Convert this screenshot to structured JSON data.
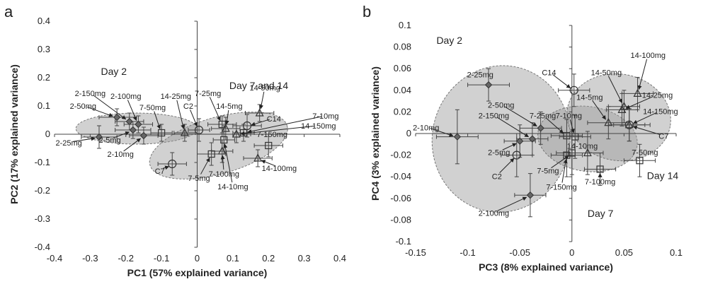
{
  "chart_data": [
    {
      "panel": "a",
      "type": "scatter",
      "xlabel": "PC1 (57% explained variance)",
      "ylabel": "PC2 (17% explained variance)",
      "xlim": [
        -0.4,
        0.4
      ],
      "ylim": [
        -0.4,
        0.4
      ],
      "xticks": [
        -0.4,
        -0.3,
        -0.2,
        -0.1,
        0,
        0.1,
        0.2,
        0.3,
        0.4
      ],
      "yticks": [
        -0.4,
        -0.3,
        -0.2,
        -0.1,
        0,
        0.1,
        0.2,
        0.3,
        0.4
      ],
      "xtick_labels": [
        "-0.4",
        "-0.3",
        "-0.2",
        "-0.1",
        "0",
        "0.1",
        "0.2",
        "0.3",
        "0.4"
      ],
      "ytick_labels": [
        "-0.4",
        "-0.3",
        "-0.2",
        "-0.1",
        "0",
        "0.1",
        "0.2",
        "0.3",
        "0.4"
      ],
      "groups": [
        {
          "label": "Day 2",
          "ellipse": {
            "cx": -0.17,
            "cy": 0.02,
            "rx": 0.17,
            "ry": 0.055,
            "angle": 0
          },
          "label_at": [
            -0.27,
            0.21
          ]
        },
        {
          "label": "Day 7 and 14",
          "ellipse": {
            "cx": 0.06,
            "cy": -0.04,
            "rx": 0.2,
            "ry": 0.1,
            "angle": 16
          },
          "label_at": [
            0.09,
            0.16
          ]
        }
      ],
      "points": [
        {
          "name": "2-25mg",
          "x": -0.275,
          "y": -0.01,
          "xerr": 0.05,
          "yerr": 0.04,
          "marker": "diamond"
        },
        {
          "name": "2-50mg",
          "x": -0.225,
          "y": 0.06,
          "xerr": 0.05,
          "yerr": 0.03,
          "marker": "diamond"
        },
        {
          "name": "2-150mg",
          "x": -0.19,
          "y": 0.045,
          "xerr": 0.04,
          "yerr": 0.03,
          "marker": "diamond"
        },
        {
          "name": "2-100mg",
          "x": -0.165,
          "y": 0.035,
          "xerr": 0.04,
          "yerr": 0.03,
          "marker": "diamond"
        },
        {
          "name": "2-5mg",
          "x": -0.18,
          "y": 0.015,
          "xerr": 0.05,
          "yerr": 0.03,
          "marker": "diamond"
        },
        {
          "name": "2-10mg",
          "x": -0.15,
          "y": -0.005,
          "xerr": 0.04,
          "yerr": 0.03,
          "marker": "diamond"
        },
        {
          "name": "7-50mg",
          "x": -0.1,
          "y": 0.005,
          "xerr": 0.03,
          "yerr": 0.03,
          "marker": "square"
        },
        {
          "name": "14-25mg",
          "x": -0.035,
          "y": 0.005,
          "xerr": 0.03,
          "yerr": 0.03,
          "marker": "triangle"
        },
        {
          "name": "C2",
          "x": 0.005,
          "y": 0.015,
          "xerr": 0.03,
          "yerr": 0.04,
          "marker": "circle"
        },
        {
          "name": "7-25mg",
          "x": 0.07,
          "y": 0.035,
          "xerr": 0.04,
          "yerr": 0.03,
          "marker": "square"
        },
        {
          "name": "14-5mg",
          "x": 0.08,
          "y": 0.02,
          "xerr": 0.04,
          "yerr": 0.04,
          "marker": "triangle"
        },
        {
          "name": "14-50mg",
          "x": 0.175,
          "y": 0.075,
          "xerr": 0.04,
          "yerr": 0.03,
          "marker": "triangle"
        },
        {
          "name": "C14",
          "x": 0.14,
          "y": 0.03,
          "xerr": 0.04,
          "yerr": 0.04,
          "marker": "circle"
        },
        {
          "name": "7-10mg",
          "x": 0.13,
          "y": 0.005,
          "xerr": 0.03,
          "yerr": 0.03,
          "marker": "square"
        },
        {
          "name": "14-150mg",
          "x": 0.11,
          "y": 0.0,
          "xerr": 0.04,
          "yerr": 0.03,
          "marker": "triangle"
        },
        {
          "name": "7-150mg",
          "x": 0.2,
          "y": -0.04,
          "xerr": 0.04,
          "yerr": 0.04,
          "marker": "square"
        },
        {
          "name": "14-100mg",
          "x": 0.17,
          "y": -0.085,
          "xerr": 0.04,
          "yerr": 0.03,
          "marker": "triangle"
        },
        {
          "name": "14-10mg",
          "x": 0.075,
          "y": -0.02,
          "xerr": 0.03,
          "yerr": 0.05,
          "marker": "square"
        },
        {
          "name": "7-100mg",
          "x": 0.07,
          "y": -0.06,
          "xerr": 0.03,
          "yerr": 0.04,
          "marker": "triangle"
        },
        {
          "name": "7-5mg",
          "x": 0.04,
          "y": -0.07,
          "xerr": 0.04,
          "yerr": 0.04,
          "marker": "square"
        },
        {
          "name": "C7",
          "x": -0.07,
          "y": -0.105,
          "xerr": 0.04,
          "yerr": 0.04,
          "marker": "circle"
        }
      ],
      "labels": [
        {
          "text": "2-25mg",
          "at": [
            -0.36,
            -0.04
          ]
        },
        {
          "text": "2-50mg",
          "at": [
            -0.32,
            0.09
          ]
        },
        {
          "text": "2-150mg",
          "at": [
            -0.3,
            0.135
          ]
        },
        {
          "text": "2-100mg",
          "at": [
            -0.2,
            0.125
          ]
        },
        {
          "text": "2-5mg",
          "at": [
            -0.245,
            -0.03
          ]
        },
        {
          "text": "2-10mg",
          "at": [
            -0.215,
            -0.08
          ]
        },
        {
          "text": "7-50mg",
          "at": [
            -0.125,
            0.085
          ]
        },
        {
          "text": "14-25mg",
          "at": [
            -0.06,
            0.125
          ]
        },
        {
          "text": "C2",
          "at": [
            -0.025,
            0.09
          ]
        },
        {
          "text": "7-25mg",
          "at": [
            0.03,
            0.135
          ]
        },
        {
          "text": "14-5mg",
          "at": [
            0.09,
            0.09
          ]
        },
        {
          "text": "14-50mg",
          "at": [
            0.19,
            0.155
          ]
        },
        {
          "text": "C14",
          "at": [
            0.215,
            0.045
          ]
        },
        {
          "text": "7-10mg",
          "at": [
            0.36,
            0.055
          ]
        },
        {
          "text": "14-150mg",
          "at": [
            0.34,
            0.02
          ]
        },
        {
          "text": "7-150mg",
          "at": [
            0.21,
            -0.01
          ]
        },
        {
          "text": "14-100mg",
          "at": [
            0.23,
            -0.13
          ]
        },
        {
          "text": "14-10mg",
          "at": [
            0.1,
            -0.195
          ]
        },
        {
          "text": "7-100mg",
          "at": [
            0.075,
            -0.15
          ]
        },
        {
          "text": "7-5mg",
          "at": [
            0.005,
            -0.165
          ]
        },
        {
          "text": "C7",
          "at": [
            -0.105,
            -0.14
          ]
        }
      ]
    },
    {
      "panel": "b",
      "type": "scatter",
      "xlabel": "PC3 (8% explained variance)",
      "ylabel": "PC4 (3% explained variance)",
      "xlim": [
        -0.15,
        0.1
      ],
      "ylim": [
        -0.1,
        0.1
      ],
      "xticks": [
        -0.15,
        -0.1,
        -0.05,
        0,
        0.05,
        0.1
      ],
      "yticks": [
        -0.1,
        -0.08,
        -0.06,
        -0.04,
        -0.02,
        0,
        0.02,
        0.04,
        0.06,
        0.08,
        0.1
      ],
      "xtick_labels": [
        "-0.15",
        "-0.1",
        "-0.05",
        "0",
        "0.05",
        "0.1"
      ],
      "ytick_labels": [
        "-0.1",
        "-0.08",
        "-0.06",
        "-0.04",
        "-0.02",
        "0",
        "0.02",
        "0.04",
        "0.06",
        "0.08",
        "0.1"
      ],
      "groups": [
        {
          "label": "Day 2",
          "ellipse": {
            "cx": -0.068,
            "cy": -0.005,
            "rx": 0.066,
            "ry": 0.068,
            "angle": -12
          },
          "label_at": [
            -0.13,
            0.083
          ]
        },
        {
          "label": "Day 7",
          "ellipse": {
            "cx": 0.015,
            "cy": -0.005,
            "rx": 0.048,
            "ry": 0.03,
            "angle": -8
          },
          "label_at": [
            0.015,
            -0.077
          ]
        },
        {
          "label": "Day 14",
          "ellipse": {
            "cx": 0.045,
            "cy": 0.015,
            "rx": 0.05,
            "ry": 0.04,
            "angle": -10
          },
          "label_at": [
            0.072,
            -0.042
          ]
        }
      ],
      "points": [
        {
          "name": "2-25mg",
          "x": -0.08,
          "y": 0.045,
          "xerr": 0.02,
          "yerr": 0.015,
          "marker": "diamond"
        },
        {
          "name": "2-10mg",
          "x": -0.11,
          "y": -0.003,
          "xerr": 0.02,
          "yerr": 0.025,
          "marker": "diamond"
        },
        {
          "name": "2-50mg",
          "x": -0.03,
          "y": 0.005,
          "xerr": 0.02,
          "yerr": 0.015,
          "marker": "diamond"
        },
        {
          "name": "2-150mg",
          "x": -0.038,
          "y": -0.005,
          "xerr": 0.015,
          "yerr": 0.015,
          "marker": "diamond"
        },
        {
          "name": "2-5mg",
          "x": -0.05,
          "y": -0.007,
          "xerr": 0.015,
          "yerr": 0.015,
          "marker": "diamond"
        },
        {
          "name": "C2",
          "x": -0.053,
          "y": -0.02,
          "xerr": 0.015,
          "yerr": 0.02,
          "marker": "circle"
        },
        {
          "name": "2-100mg",
          "x": -0.04,
          "y": -0.057,
          "xerr": 0.015,
          "yerr": 0.02,
          "marker": "diamond"
        },
        {
          "name": "C14",
          "x": 0.002,
          "y": 0.04,
          "xerr": 0.015,
          "yerr": 0.015,
          "marker": "circle"
        },
        {
          "name": "7-25mg",
          "x": -0.005,
          "y": -0.002,
          "xerr": 0.015,
          "yerr": 0.015,
          "marker": "square"
        },
        {
          "name": "7-10mg",
          "x": 0.003,
          "y": -0.003,
          "xerr": 0.015,
          "yerr": 0.02,
          "marker": "square"
        },
        {
          "name": "7-5mg",
          "x": 0.0,
          "y": -0.018,
          "xerr": 0.015,
          "yerr": 0.02,
          "marker": "square"
        },
        {
          "name": "7-150mg",
          "x": -0.005,
          "y": -0.02,
          "xerr": 0.015,
          "yerr": 0.02,
          "marker": "square"
        },
        {
          "name": "7-100mg",
          "x": 0.027,
          "y": -0.033,
          "xerr": 0.015,
          "yerr": 0.015,
          "marker": "square"
        },
        {
          "name": "14-10mg",
          "x": 0.015,
          "y": -0.018,
          "xerr": 0.015,
          "yerr": 0.02,
          "marker": "triangle"
        },
        {
          "name": "14-5mg",
          "x": 0.035,
          "y": 0.01,
          "xerr": 0.02,
          "yerr": 0.015,
          "marker": "triangle"
        },
        {
          "name": "14-50mg",
          "x": 0.05,
          "y": 0.025,
          "xerr": 0.015,
          "yerr": 0.015,
          "marker": "triangle"
        },
        {
          "name": "14-25mg",
          "x": 0.048,
          "y": 0.022,
          "xerr": 0.015,
          "yerr": 0.015,
          "marker": "triangle"
        },
        {
          "name": "14-100mg",
          "x": 0.063,
          "y": 0.037,
          "xerr": 0.015,
          "yerr": 0.015,
          "marker": "triangle"
        },
        {
          "name": "14-150mg",
          "x": 0.055,
          "y": 0.008,
          "xerr": 0.02,
          "yerr": 0.015,
          "marker": "triangle"
        },
        {
          "name": "C7",
          "x": 0.055,
          "y": 0.008,
          "xerr": 0.015,
          "yerr": 0.015,
          "marker": "circle"
        },
        {
          "name": "7-50mg",
          "x": 0.065,
          "y": -0.025,
          "xerr": 0.015,
          "yerr": 0.015,
          "marker": "square"
        }
      ],
      "labels": [
        {
          "text": "2-25mg",
          "at": [
            -0.088,
            0.052
          ]
        },
        {
          "text": "2-10mg",
          "at": [
            -0.14,
            0.003
          ]
        },
        {
          "text": "2-50mg",
          "at": [
            -0.068,
            0.024
          ]
        },
        {
          "text": "2-150mg",
          "at": [
            -0.075,
            0.014
          ]
        },
        {
          "text": "2-5mg",
          "at": [
            -0.07,
            -0.02
          ]
        },
        {
          "text": "C2",
          "at": [
            -0.072,
            -0.042
          ]
        },
        {
          "text": "2-100mg",
          "at": [
            -0.075,
            -0.076
          ]
        },
        {
          "text": "C14",
          "at": [
            -0.022,
            0.054
          ]
        },
        {
          "text": "7-25mg",
          "at": [
            -0.028,
            0.014
          ]
        },
        {
          "text": "7-10mg",
          "at": [
            -0.003,
            0.014
          ]
        },
        {
          "text": "7-5mg",
          "at": [
            -0.023,
            -0.037
          ]
        },
        {
          "text": "7-150mg",
          "at": [
            -0.01,
            -0.052
          ]
        },
        {
          "text": "7-100mg",
          "at": [
            0.027,
            -0.047
          ]
        },
        {
          "text": "14-10mg",
          "at": [
            0.01,
            -0.014
          ]
        },
        {
          "text": "14-5mg",
          "at": [
            0.017,
            0.031
          ]
        },
        {
          "text": "14-50mg",
          "at": [
            0.033,
            0.054
          ]
        },
        {
          "text": "14-25mg",
          "at": [
            0.082,
            0.033
          ]
        },
        {
          "text": "14-100mg",
          "at": [
            0.073,
            0.07
          ]
        },
        {
          "text": "14-150mg",
          "at": [
            0.085,
            0.018
          ]
        },
        {
          "text": "C7",
          "at": [
            0.088,
            -0.005
          ]
        },
        {
          "text": "7-50mg",
          "at": [
            0.07,
            -0.02
          ]
        }
      ]
    }
  ],
  "panel_letters": [
    "a",
    "b"
  ]
}
